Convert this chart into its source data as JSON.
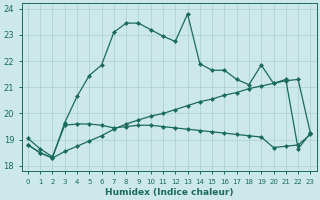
{
  "xlabel": "Humidex (Indice chaleur)",
  "xlim": [
    -0.5,
    23.5
  ],
  "ylim": [
    17.8,
    24.2
  ],
  "yticks": [
    18,
    19,
    20,
    21,
    22,
    23,
    24
  ],
  "xticks": [
    0,
    1,
    2,
    3,
    4,
    5,
    6,
    7,
    8,
    9,
    10,
    11,
    12,
    13,
    14,
    15,
    16,
    17,
    18,
    19,
    20,
    21,
    22,
    23
  ],
  "background_color": "#cde8e8",
  "line_color": "#1a6b5a",
  "grid_color": "#afd4d0",
  "line1_x": [
    0,
    1,
    2,
    3,
    4,
    5,
    6,
    7,
    8,
    9,
    10,
    11,
    12,
    13,
    14,
    15,
    16,
    17,
    18,
    19,
    20,
    21,
    22,
    23
  ],
  "line1_y": [
    18.8,
    18.5,
    18.3,
    19.65,
    20.65,
    21.45,
    21.85,
    23.1,
    23.45,
    23.45,
    23.2,
    22.95,
    22.75,
    23.8,
    21.9,
    21.65,
    21.65,
    21.3,
    21.1,
    21.85,
    21.15,
    21.3,
    18.65,
    19.25
  ],
  "line2_x": [
    0,
    1,
    2,
    3,
    4,
    5,
    6,
    7,
    8,
    9,
    10,
    11,
    12,
    13,
    14,
    15,
    16,
    17,
    18,
    19,
    20,
    21,
    22,
    23
  ],
  "line2_y": [
    19.05,
    18.65,
    18.35,
    19.55,
    19.6,
    19.6,
    19.55,
    19.45,
    19.5,
    19.55,
    19.55,
    19.5,
    19.45,
    19.4,
    19.35,
    19.3,
    19.25,
    19.2,
    19.15,
    19.1,
    18.7,
    18.75,
    18.8,
    19.2
  ],
  "line3_x": [
    0,
    1,
    2,
    3,
    4,
    5,
    6,
    7,
    8,
    9,
    10,
    11,
    12,
    13,
    14,
    15,
    16,
    17,
    18,
    19,
    20,
    21,
    22,
    23
  ],
  "line3_y": [
    18.8,
    18.5,
    18.3,
    18.55,
    18.75,
    18.95,
    19.15,
    19.4,
    19.6,
    19.75,
    19.9,
    20.0,
    20.15,
    20.3,
    20.45,
    20.55,
    20.7,
    20.8,
    20.95,
    21.05,
    21.15,
    21.25,
    21.3,
    19.25
  ]
}
